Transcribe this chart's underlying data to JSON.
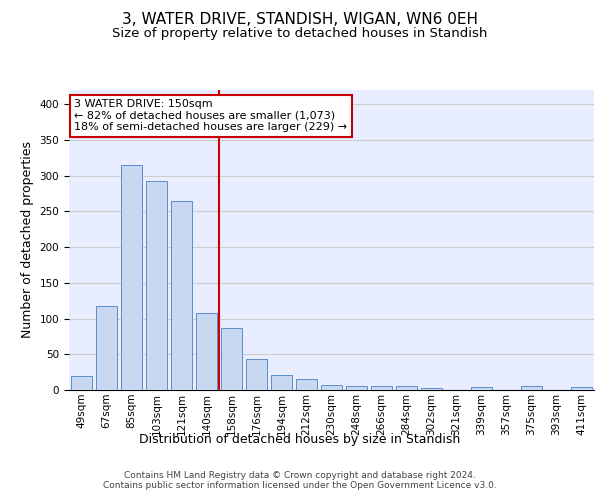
{
  "title": "3, WATER DRIVE, STANDISH, WIGAN, WN6 0EH",
  "subtitle": "Size of property relative to detached houses in Standish",
  "xlabel": "Distribution of detached houses by size in Standish",
  "ylabel": "Number of detached properties",
  "categories": [
    "49sqm",
    "67sqm",
    "85sqm",
    "103sqm",
    "121sqm",
    "140sqm",
    "158sqm",
    "176sqm",
    "194sqm",
    "212sqm",
    "230sqm",
    "248sqm",
    "266sqm",
    "284sqm",
    "302sqm",
    "321sqm",
    "339sqm",
    "357sqm",
    "375sqm",
    "393sqm",
    "411sqm"
  ],
  "bar_values": [
    20,
    118,
    315,
    293,
    265,
    108,
    87,
    44,
    21,
    16,
    7,
    6,
    5,
    5,
    3,
    0,
    4,
    0,
    5,
    0,
    4
  ],
  "bar_color": "#c8d8f0",
  "bar_edge_color": "#5b8fc9",
  "annotation_text_line1": "3 WATER DRIVE: 150sqm",
  "annotation_text_line2": "← 82% of detached houses are smaller (1,073)",
  "annotation_text_line3": "18% of semi-detached houses are larger (229) →",
  "annotation_box_color": "#ffffff",
  "annotation_box_edge_color": "#cc0000",
  "vline_color": "#cc0000",
  "vline_x_index": 5.5,
  "ylim": [
    0,
    420
  ],
  "yticks": [
    0,
    50,
    100,
    150,
    200,
    250,
    300,
    350,
    400
  ],
  "grid_color": "#cccccc",
  "bg_color": "#e8eeff",
  "footer": "Contains HM Land Registry data © Crown copyright and database right 2024.\nContains public sector information licensed under the Open Government Licence v3.0.",
  "title_fontsize": 11,
  "subtitle_fontsize": 9.5,
  "ylabel_fontsize": 9,
  "xlabel_fontsize": 9,
  "tick_fontsize": 7.5,
  "annotation_fontsize": 8,
  "footer_fontsize": 6.5
}
